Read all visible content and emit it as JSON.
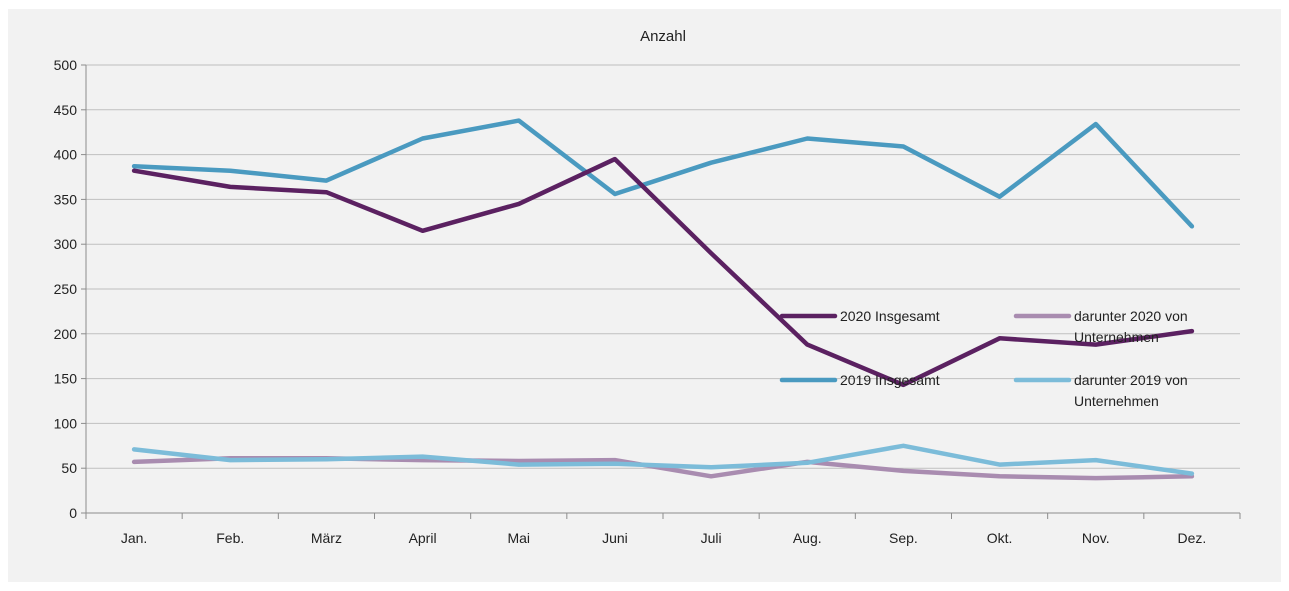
{
  "chart_data": {
    "type": "line",
    "title": "Anzahl",
    "xlabel": "",
    "ylabel": "",
    "ylim": [
      0,
      500
    ],
    "yticks": [
      0,
      50,
      100,
      150,
      200,
      250,
      300,
      350,
      400,
      450,
      500
    ],
    "grid": true,
    "legend_position": "right-center, inside plot",
    "categories": [
      "Jan.",
      "Feb.",
      "März",
      "April",
      "Mai",
      "Juni",
      "Juli",
      "Aug.",
      "Sep.",
      "Okt.",
      "Nov.",
      "Dez."
    ],
    "series": [
      {
        "name": "2020 Insgesamt",
        "color": "#5b2161",
        "values": [
          382,
          364,
          358,
          315,
          345,
          395,
          290,
          188,
          143,
          195,
          188,
          203
        ]
      },
      {
        "name": "darunter 2020 von Unternehmen",
        "color": "#a98cb0",
        "values": [
          57,
          61,
          61,
          59,
          58,
          59,
          41,
          57,
          47,
          41,
          39,
          41
        ]
      },
      {
        "name": "2019 Insgesamt",
        "color": "#4a9ac0",
        "values": [
          387,
          382,
          371,
          418,
          438,
          356,
          391,
          418,
          409,
          353,
          434,
          320
        ]
      },
      {
        "name": "darunter 2019 von Unternehmen",
        "color": "#7cbcd9",
        "values": [
          71,
          59,
          60,
          63,
          54,
          55,
          51,
          56,
          75,
          54,
          59,
          44
        ]
      }
    ]
  }
}
